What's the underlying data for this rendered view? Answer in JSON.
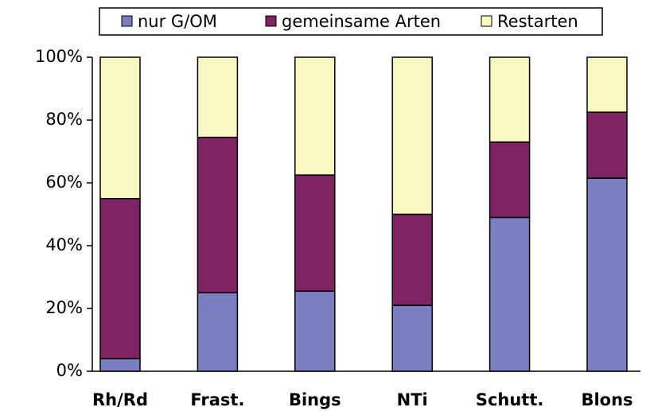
{
  "chart_data": {
    "type": "stacked-bar",
    "categories": [
      "Rh/Rd",
      "Frast.",
      "Bings",
      "NTi",
      "Schutt.",
      "Blons"
    ],
    "series": [
      {
        "name": "nur G/OM",
        "color": "#7b7fc0",
        "values": [
          4,
          25,
          25.5,
          21,
          49,
          61.5
        ]
      },
      {
        "name": "gemeinsame Arten",
        "color": "#7f2463",
        "values": [
          51,
          49.5,
          37,
          29,
          24,
          21
        ]
      },
      {
        "name": "Restarten",
        "color": "#f9f7c2",
        "values": [
          45,
          25.5,
          37.5,
          50,
          27,
          17.5
        ]
      }
    ],
    "ylim": [
      0,
      100
    ],
    "yticks": [
      {
        "value": 0,
        "label": "0%"
      },
      {
        "value": 20,
        "label": "20%"
      },
      {
        "value": 40,
        "label": "40%"
      },
      {
        "value": 60,
        "label": "60%"
      },
      {
        "value": 80,
        "label": "80%"
      },
      {
        "value": 100,
        "label": "100%"
      }
    ],
    "legend": "top",
    "grid": false
  }
}
